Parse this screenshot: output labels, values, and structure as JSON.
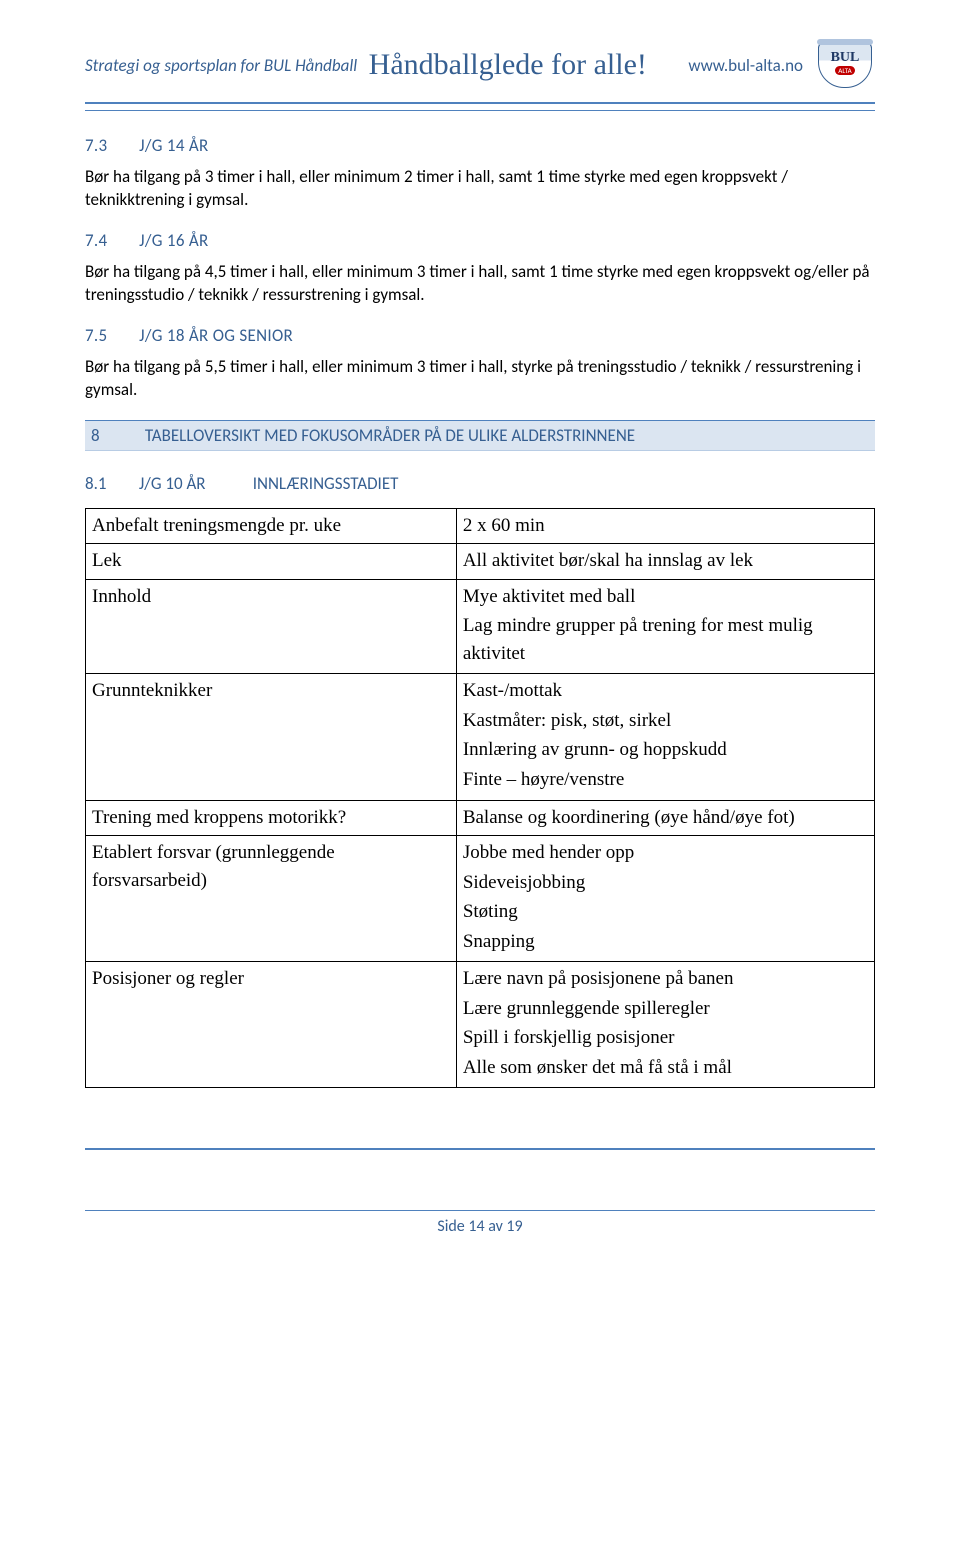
{
  "header": {
    "left": "Strategi og sportsplan for BUL Håndball",
    "center": "Håndballglede for alle!",
    "url": "www.bul-alta.no",
    "logo_bul": "BUL",
    "logo_alta": "ALTA"
  },
  "s73": {
    "num": "7.3",
    "title": "J/G 14 ÅR",
    "body": "Bør ha tilgang på 3 timer i hall, eller minimum 2 timer i hall, samt 1 time styrke med egen kroppsvekt / teknikktrening i gymsal."
  },
  "s74": {
    "num": "7.4",
    "title": "J/G 16 ÅR",
    "body": "Bør ha tilgang på 4,5 timer i hall, eller minimum 3 timer i hall, samt 1 time styrke med egen kroppsvekt og/eller på treningsstudio / teknikk / ressurstrening i gymsal."
  },
  "s75": {
    "num": "7.5",
    "title": "J/G 18 ÅR OG SENIOR",
    "body": "Bør ha tilgang på 5,5 timer i hall, eller minimum 3 timer i hall, styrke på treningsstudio / teknikk / ressurstrening i gymsal."
  },
  "s8": {
    "num": "8",
    "title": "TABELLOVERSIKT MED FOKUSOMRÅDER PÅ DE ULIKE ALDERSTRINNENE"
  },
  "s81": {
    "num": "8.1",
    "mid": "J/G 10 ÅR",
    "title": "INNLÆRINGSSTADIET"
  },
  "table": {
    "r1c1": "Anbefalt treningsmengde pr. uke",
    "r1c2": "2 x 60 min",
    "r2c1": "Lek",
    "r2c2": "All aktivitet bør/skal ha innslag av lek",
    "r3c1": "Innhold",
    "r3c2a": "Mye aktivitet med ball",
    "r3c2b": "Lag mindre grupper på trening for mest mulig aktivitet",
    "r4c1": "Grunnteknikker",
    "r4c2a": "Kast-/mottak",
    "r4c2b": "Kastmåter: pisk, støt, sirkel",
    "r4c2c": "Innlæring av grunn- og hoppskudd",
    "r4c2d": "Finte – høyre/venstre",
    "r5c1": "Trening med kroppens motorikk?",
    "r5c2": "Balanse og koordinering (øye hånd/øye fot)",
    "r6c1": "Etablert forsvar (grunnleggende forsvarsarbeid)",
    "r6c2a": "Jobbe med hender opp",
    "r6c2b": "Sideveisjobbing",
    "r6c2c": "Støting",
    "r6c2d": "Snapping",
    "r7c1": "Posisjoner og regler",
    "r7c2a": "Lære navn på posisjonene på banen",
    "r7c2b": "Lære grunnleggende spilleregler",
    "r7c2c": "Spill i forskjellig posisjoner",
    "r7c2d": "Alle som ønsker det må få stå i mål"
  },
  "footer": "Side 14 av 19",
  "colors": {
    "accent": "#365f91",
    "rule": "#4f81bd",
    "band_bg": "#dbe5f1"
  }
}
